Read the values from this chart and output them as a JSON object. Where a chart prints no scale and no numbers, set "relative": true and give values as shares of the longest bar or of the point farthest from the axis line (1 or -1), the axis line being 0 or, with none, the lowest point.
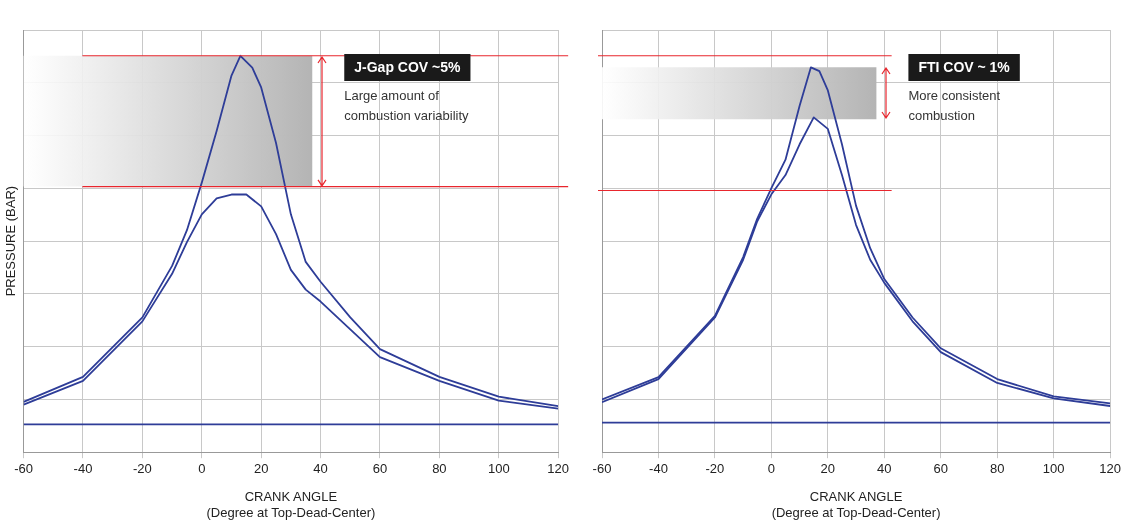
{
  "chart_data": [
    {
      "type": "line",
      "relative": true,
      "xlabel": "CRANK ANGLE\n(Degree at Top-Dead-Center)",
      "ylabel": "PRESSURE (BAR)",
      "xlim": [
        -60,
        120
      ],
      "xticks": [
        -60,
        -40,
        -20,
        0,
        20,
        40,
        60,
        80,
        100,
        120
      ],
      "grid": true,
      "legend": false,
      "marker": "none",
      "line_style": "solid",
      "series": [
        {
          "color": "#2e3d98",
          "x": [
            -60,
            -40,
            -20,
            -10,
            -5,
            0,
            5,
            10,
            13,
            17,
            20,
            25,
            30,
            35,
            40,
            50,
            60,
            80,
            100,
            120
          ],
          "values": [
            0.127,
            0.19,
            0.34,
            0.47,
            0.56,
            0.68,
            0.81,
            0.95,
            1,
            0.97,
            0.92,
            0.78,
            0.6,
            0.48,
            0.43,
            0.34,
            0.26,
            0.19,
            0.14,
            0.116
          ]
        },
        {
          "color": "#2e3d98",
          "x": [
            -60,
            -40,
            -20,
            -10,
            -5,
            0,
            5,
            10,
            15,
            20,
            25,
            30,
            35,
            40,
            50,
            60,
            80,
            100,
            120
          ],
          "values": [
            0.12,
            0.18,
            0.33,
            0.45,
            0.53,
            0.6,
            0.64,
            0.65,
            0.65,
            0.62,
            0.55,
            0.46,
            0.41,
            0.38,
            0.31,
            0.24,
            0.18,
            0.13,
            0.11
          ]
        },
        {
          "color": "#2e3d98",
          "x": [
            -60,
            120
          ],
          "values": [
            0.07,
            0.07
          ]
        }
      ],
      "bands": [
        {
          "axis": "y",
          "from": 0.67,
          "to": 1,
          "color": "#b4b4b4"
        }
      ],
      "ref_lines": [
        {
          "axis": "y",
          "value": 1,
          "color": "#e8262d"
        },
        {
          "axis": "y",
          "value": 0.67,
          "color": "#e8262d"
        }
      ],
      "annotations": [
        "J-Gap COV ~5%",
        "Large amount of combustion variability"
      ]
    },
    {
      "type": "line",
      "relative": true,
      "xlabel": "CRANK ANGLE\n(Degree at Top-Dead-Center)",
      "xlim": [
        -60,
        120
      ],
      "xticks": [
        -60,
        -40,
        -20,
        0,
        20,
        40,
        60,
        80,
        100,
        120
      ],
      "grid": true,
      "legend": false,
      "marker": "none",
      "line_style": "solid",
      "series": [
        {
          "color": "#2e3d98",
          "x": [
            -60,
            -40,
            -20,
            -10,
            -5,
            0,
            5,
            10,
            14,
            17,
            20,
            25,
            30,
            35,
            40,
            50,
            60,
            80,
            100,
            120
          ],
          "values": [
            0.137,
            0.195,
            0.354,
            0.507,
            0.607,
            0.686,
            0.76,
            0.9,
            1,
            0.99,
            0.94,
            0.8,
            0.64,
            0.53,
            0.45,
            0.35,
            0.27,
            0.19,
            0.145,
            0.127
          ]
        },
        {
          "color": "#2e3d98",
          "x": [
            -60,
            -40,
            -20,
            -10,
            -5,
            0,
            5,
            10,
            15,
            20,
            25,
            30,
            35,
            40,
            50,
            60,
            80,
            100,
            120
          ],
          "values": [
            0.13,
            0.19,
            0.35,
            0.5,
            0.6,
            0.67,
            0.72,
            0.8,
            0.87,
            0.84,
            0.72,
            0.59,
            0.5,
            0.44,
            0.34,
            0.26,
            0.18,
            0.14,
            0.12
          ]
        },
        {
          "color": "#2e3d98",
          "x": [
            -60,
            120
          ],
          "values": [
            0.077,
            0.077
          ]
        }
      ],
      "bands": [
        {
          "axis": "y",
          "from": 0.865,
          "to": 1,
          "color": "#b4b4b4"
        }
      ],
      "ref_lines": [
        {
          "axis": "y",
          "value": 1.03,
          "color": "#e8262d"
        },
        {
          "axis": "y",
          "value": 0.68,
          "color": "#e8262d"
        }
      ],
      "annotations": [
        "FTI COV ~ 1%",
        "More consistent combustion"
      ]
    }
  ]
}
